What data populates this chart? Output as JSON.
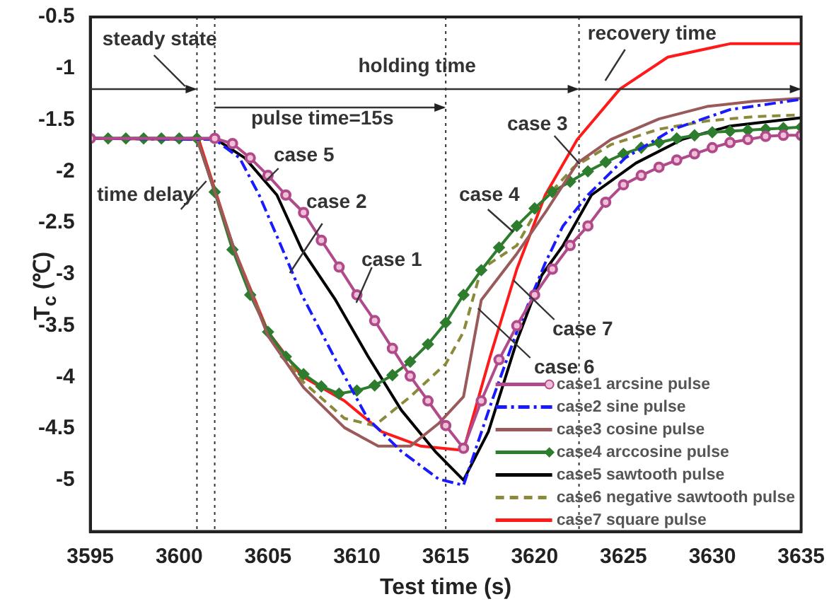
{
  "chart_data": {
    "type": "line",
    "xlabel": "Test time (s)",
    "ylabel": "T$_{c}$ (℃)",
    "xlim": [
      3595,
      3635
    ],
    "xticks": [
      3595,
      3600,
      3605,
      3610,
      3615,
      3620,
      3625,
      3630,
      3635
    ],
    "ylim": [
      -5.5,
      -0.5
    ],
    "yticks": [
      -5,
      -4.5,
      -4,
      -3.5,
      -3,
      -2.5,
      -2,
      -1.5,
      -1,
      -0.5
    ],
    "grid": false,
    "legend": "bottom right",
    "marker": "none",
    "series": [
      {
        "name": "case1 arcsine pulse",
        "color": "#b04a8a",
        "marker": "circle",
        "line_style": "solid",
        "x": [
          3595,
          3602,
          3603,
          3604,
          3605,
          3606,
          3607,
          3608,
          3609,
          3610,
          3611,
          3612,
          3613,
          3614,
          3615,
          3616,
          3617,
          3618,
          3619,
          3620,
          3621,
          3622,
          3623,
          3624,
          3625,
          3626,
          3627,
          3628,
          3629,
          3630,
          3631,
          3632,
          3633,
          3634,
          3635
        ],
        "values": [
          -1.68,
          -1.68,
          -1.73,
          -1.87,
          -2.04,
          -2.23,
          -2.4,
          -2.67,
          -2.93,
          -3.2,
          -3.45,
          -3.72,
          -3.99,
          -4.23,
          -4.47,
          -4.69,
          -4.23,
          -3.83,
          -3.5,
          -3.2,
          -2.95,
          -2.72,
          -2.53,
          -2.3,
          -2.13,
          -2.04,
          -1.96,
          -1.89,
          -1.83,
          -1.77,
          -1.72,
          -1.69,
          -1.66,
          -1.65,
          -1.65
        ]
      },
      {
        "name": "case2 sine pulse",
        "color": "#1a1aff",
        "line_style": "dashdot",
        "x": [
          3595,
          3602,
          3603.4,
          3604.5,
          3605.5,
          3606.9,
          3608.8,
          3610.6,
          3612.5,
          3614.6,
          3616,
          3617.6,
          3619,
          3620.6,
          3621.6,
          3623,
          3625.1,
          3627.8,
          3631,
          3635
        ],
        "values": [
          -1.68,
          -1.69,
          -1.87,
          -2.23,
          -2.63,
          -3.2,
          -3.83,
          -4.4,
          -4.72,
          -4.99,
          -5.05,
          -4.23,
          -3.56,
          -2.89,
          -2.53,
          -2.23,
          -1.87,
          -1.59,
          -1.4,
          -1.3
        ]
      },
      {
        "name": "case3 cosine pulse",
        "color": "#9a5a5a",
        "line_style": "solid",
        "x": [
          3595,
          3601,
          3603.1,
          3605,
          3607,
          3609.3,
          3611.2,
          3613,
          3614.6,
          3616,
          3617,
          3619,
          3620.6,
          3622.4,
          3624.3,
          3627,
          3629.7,
          3632.3,
          3635
        ],
        "values": [
          -1.68,
          -1.68,
          -2.76,
          -3.6,
          -4.1,
          -4.49,
          -4.67,
          -4.67,
          -4.45,
          -4.19,
          -3.25,
          -2.8,
          -2.4,
          -1.92,
          -1.69,
          -1.49,
          -1.37,
          -1.32,
          -1.29
        ]
      },
      {
        "name": "case4 arccosine pulse",
        "color": "#2e7d2e",
        "marker": "diamond",
        "line_style": "solid",
        "x": [
          3595,
          3596,
          3597,
          3598,
          3599,
          3600,
          3601,
          3602,
          3603,
          3604,
          3605,
          3606,
          3607,
          3608,
          3609,
          3610,
          3611,
          3612,
          3613,
          3614,
          3615,
          3616,
          3617,
          3618,
          3619,
          3620,
          3621,
          3622,
          3623,
          3624,
          3625,
          3626,
          3627,
          3628,
          3629,
          3630,
          3631,
          3632,
          3633,
          3634,
          3635
        ],
        "values": [
          -1.68,
          -1.68,
          -1.68,
          -1.68,
          -1.68,
          -1.68,
          -1.68,
          -2.2,
          -2.76,
          -3.2,
          -3.56,
          -3.8,
          -3.97,
          -4.09,
          -4.16,
          -4.13,
          -4.08,
          -3.98,
          -3.85,
          -3.68,
          -3.47,
          -3.2,
          -2.96,
          -2.74,
          -2.53,
          -2.36,
          -2.2,
          -2.1,
          -2,
          -1.91,
          -1.83,
          -1.77,
          -1.72,
          -1.68,
          -1.65,
          -1.62,
          -1.61,
          -1.6,
          -1.59,
          -1.58,
          -1.57
        ]
      },
      {
        "name": "case5 sawtooth pulse",
        "color": "#000000",
        "line_style": "solid",
        "x": [
          3595,
          3602,
          3603.7,
          3605.5,
          3606.9,
          3608.8,
          3610.6,
          3612.5,
          3614.4,
          3616,
          3617.4,
          3619,
          3620.4,
          3621.6,
          3623.2,
          3625.7,
          3628.3,
          3631,
          3635
        ],
        "values": [
          -1.68,
          -1.68,
          -1.87,
          -2.23,
          -2.76,
          -3.25,
          -3.79,
          -4.32,
          -4.72,
          -5,
          -4.53,
          -3.65,
          -3.01,
          -2.72,
          -2.23,
          -1.92,
          -1.69,
          -1.56,
          -1.48
        ]
      },
      {
        "name": "case6 negative sawtooth pulse",
        "color": "#8a8a3a",
        "line_style": "dashed",
        "x": [
          3595,
          3601,
          3603.1,
          3605,
          3607,
          3609.3,
          3611,
          3613,
          3615,
          3616,
          3617,
          3619,
          3620.3,
          3622.2,
          3624.3,
          3627,
          3629.7,
          3632.3,
          3635
        ],
        "values": [
          -1.68,
          -1.68,
          -2.76,
          -3.58,
          -4.05,
          -4.4,
          -4.47,
          -4.19,
          -3.87,
          -3.56,
          -2.95,
          -2.72,
          -2.32,
          -1.96,
          -1.74,
          -1.59,
          -1.51,
          -1.47,
          -1.45
        ]
      },
      {
        "name": "case7 square pulse",
        "color": "#ff1a1a",
        "line_style": "solid",
        "x": [
          3595,
          3601.1,
          3603.1,
          3605,
          3606.9,
          3609.3,
          3611.4,
          3613.6,
          3616,
          3617.5,
          3619,
          3620.6,
          3622.4,
          3624.8,
          3627.5,
          3631,
          3635
        ],
        "values": [
          -1.68,
          -1.69,
          -2.76,
          -3.56,
          -3.99,
          -4.23,
          -4.53,
          -4.67,
          -4.71,
          -3.8,
          -2.95,
          -2.23,
          -1.69,
          -1.2,
          -0.89,
          -0.76,
          -0.76
        ]
      }
    ],
    "ref_lines": [
      {
        "axis": "x",
        "value": 3601,
        "line_style": "dotted"
      },
      {
        "axis": "x",
        "value": 3602,
        "line_style": "dotted"
      },
      {
        "axis": "x",
        "value": 3615,
        "line_style": "dotted"
      },
      {
        "axis": "x",
        "value": 3622.5,
        "line_style": "dotted"
      }
    ],
    "annotations": [
      "steady state",
      "holding time",
      "pulse time=15s",
      "time delay",
      "recovery time",
      "case 5",
      "case 2",
      "case 1",
      "case 3",
      "case 4",
      "case 7",
      "case 6"
    ]
  }
}
